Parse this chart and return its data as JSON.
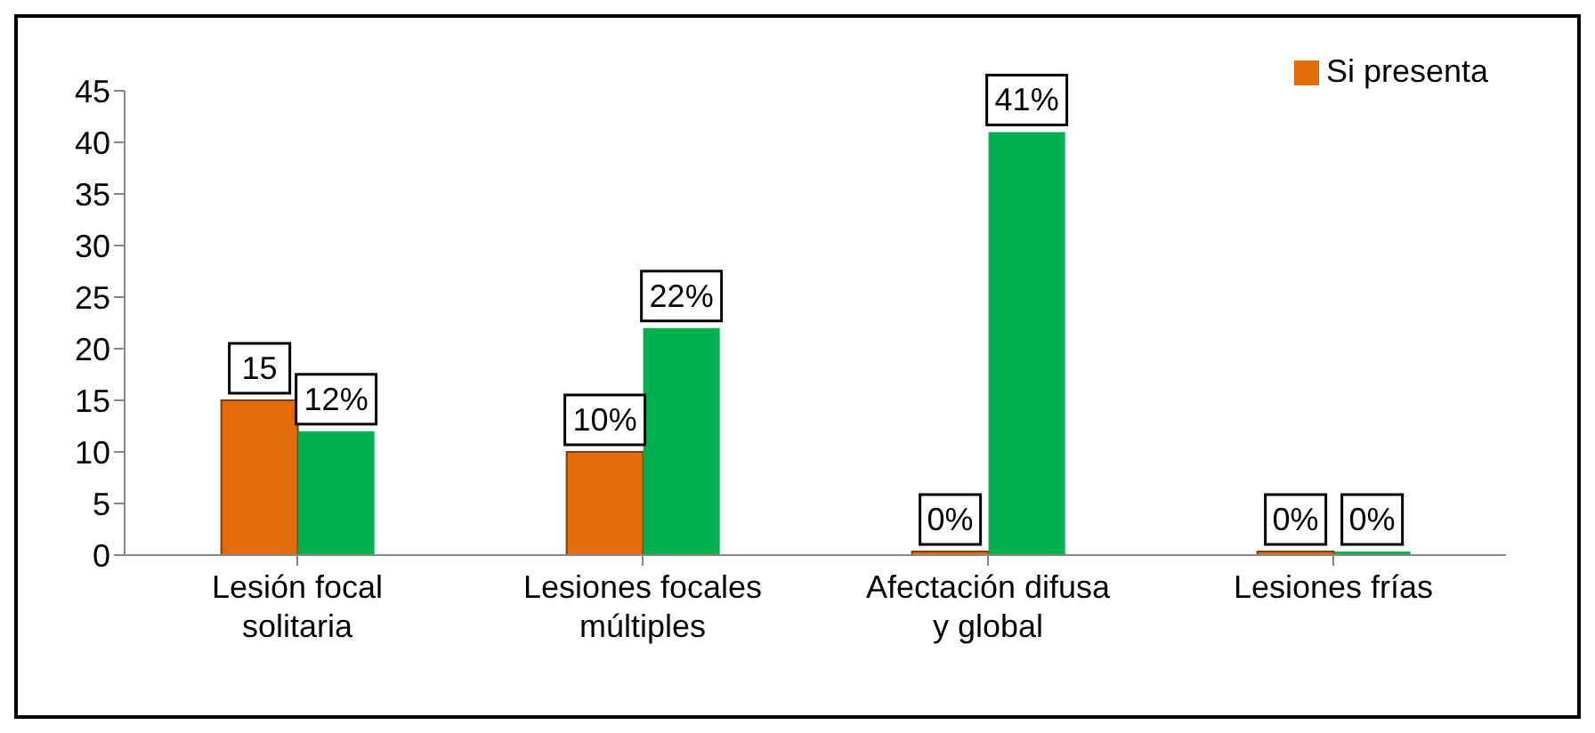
{
  "chart_data": {
    "type": "bar",
    "categories": [
      "Lesión focal solitaria",
      "Lesiones focales múltiples",
      "Afectación difusa y global",
      "Lesiones frías"
    ],
    "series": [
      {
        "name": "Si presenta",
        "color": "#e36c0a",
        "values": [
          15,
          10,
          0,
          0
        ],
        "value_labels": [
          "15",
          "10%",
          "0%",
          "0%"
        ]
      },
      {
        "color": "#00b050",
        "values": [
          12,
          22,
          41,
          0
        ],
        "value_labels": [
          "12%",
          "22%",
          "41%",
          "0%"
        ]
      }
    ],
    "ylim": [
      0,
      45
    ],
    "yticks": [
      0,
      5,
      10,
      15,
      20,
      25,
      30,
      35,
      40,
      45
    ],
    "grid": false,
    "legend": "top right"
  }
}
